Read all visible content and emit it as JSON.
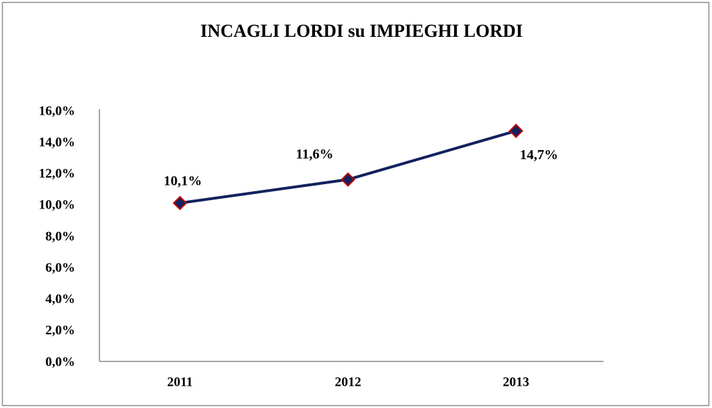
{
  "chart_data": {
    "type": "line",
    "title": "INCAGLI LORDI su IMPIEGHI LORDI",
    "categories": [
      "2011",
      "2012",
      "2013"
    ],
    "series": [
      {
        "name": "INCAGLI LORDI su IMPIEGHI LORDI",
        "color": "#13215e",
        "values": [
          10.1,
          11.6,
          14.7
        ],
        "value_labels": [
          "10,1%",
          "11,6%",
          "14,7%"
        ]
      }
    ],
    "marker_edge_color": "#c00000",
    "ylim": [
      0,
      16
    ],
    "yticks": [
      {
        "value": 0,
        "label": "0,0%"
      },
      {
        "value": 2,
        "label": "2,0%"
      },
      {
        "value": 4,
        "label": "4,0%"
      },
      {
        "value": 6,
        "label": "6,0%"
      },
      {
        "value": 8,
        "label": "8,0%"
      },
      {
        "value": 10,
        "label": "10,0%"
      },
      {
        "value": 12,
        "label": "12,0%"
      },
      {
        "value": 14,
        "label": "14,0%"
      },
      {
        "value": 16,
        "label": "16,0%"
      }
    ],
    "grid": false
  }
}
